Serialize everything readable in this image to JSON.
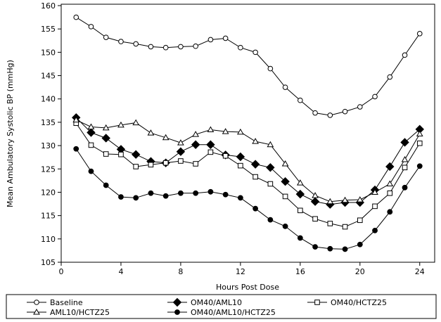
{
  "chart_data": {
    "type": "line",
    "xlabel": "Hours Post Dose",
    "ylabel": "Mean Ambulatory Systolic BP (mmHg)",
    "xlim": [
      0,
      25
    ],
    "ylim": [
      105,
      160
    ],
    "xticks": [
      0,
      4,
      8,
      12,
      16,
      20,
      24
    ],
    "yticks": [
      105,
      110,
      115,
      120,
      125,
      130,
      135,
      140,
      145,
      150,
      155,
      160
    ],
    "grid": false,
    "legend_position": "bottom",
    "x": [
      1,
      2,
      3,
      4,
      5,
      6,
      7,
      8,
      9,
      10,
      11,
      12,
      13,
      14,
      15,
      16,
      17,
      18,
      19,
      20,
      21,
      22,
      23,
      24
    ],
    "series": [
      {
        "name": "Baseline",
        "marker": "circle-open",
        "values": [
          157.5,
          155.5,
          153.2,
          152.3,
          151.8,
          151.2,
          151.0,
          151.2,
          151.3,
          152.7,
          153.0,
          151.0,
          150.0,
          146.5,
          142.5,
          139.7,
          137.0,
          136.5,
          137.3,
          138.3,
          140.5,
          144.7,
          149.4,
          154.0
        ]
      },
      {
        "name": "OM40/AML10",
        "marker": "diamond-filled",
        "values": [
          136.0,
          132.8,
          131.6,
          129.2,
          128.1,
          126.6,
          126.3,
          128.7,
          130.2,
          130.2,
          128.0,
          127.6,
          126.0,
          125.3,
          122.3,
          119.6,
          118.0,
          117.4,
          117.8,
          117.8,
          120.5,
          125.5,
          130.7,
          133.5
        ]
      },
      {
        "name": "OM40/HCTZ25",
        "marker": "square-open",
        "values": [
          134.8,
          130.1,
          128.2,
          128.1,
          125.5,
          125.9,
          126.3,
          126.7,
          126.1,
          128.6,
          127.8,
          125.7,
          123.3,
          121.8,
          119.1,
          116.1,
          114.3,
          113.3,
          112.6,
          114.0,
          117.0,
          119.8,
          125.3,
          130.5
        ]
      },
      {
        "name": "AML10/HCTZ25",
        "marker": "triangle-open",
        "values": [
          135.5,
          134.0,
          133.8,
          134.4,
          134.9,
          132.7,
          131.7,
          130.6,
          132.4,
          133.4,
          133.0,
          132.9,
          130.9,
          130.2,
          126.1,
          122.0,
          119.3,
          118.0,
          118.3,
          118.4,
          120.0,
          121.8,
          127.0,
          132.5
        ]
      },
      {
        "name": "OM40/AML10/HCTZ25",
        "marker": "circle-filled",
        "values": [
          129.3,
          124.5,
          121.5,
          119.0,
          118.8,
          119.8,
          119.2,
          119.8,
          119.8,
          120.1,
          119.5,
          118.8,
          116.5,
          114.1,
          112.7,
          110.2,
          108.3,
          107.9,
          107.8,
          108.8,
          111.8,
          115.8,
          121.0,
          125.6
        ]
      }
    ]
  },
  "legend": {
    "items": [
      {
        "label": "Baseline",
        "marker": "circle-open"
      },
      {
        "label": "OM40/AML10",
        "marker": "diamond-filled"
      },
      {
        "label": "OM40/HCTZ25",
        "marker": "square-open"
      },
      {
        "label": "AML10/HCTZ25",
        "marker": "triangle-open"
      },
      {
        "label": "OM40/AML10/HCTZ25",
        "marker": "circle-filled"
      }
    ]
  }
}
